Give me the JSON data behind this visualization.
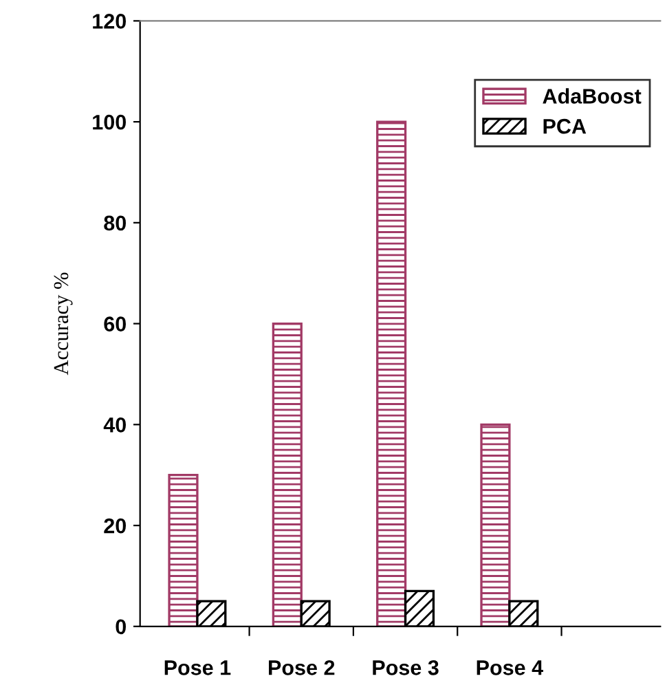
{
  "chart_data": {
    "type": "bar",
    "ylabel": "Accuracy %",
    "categories": [
      "Pose 1",
      "Pose 2",
      "Pose 3",
      "Pose 4",
      null
    ],
    "series": [
      {
        "name": "AdaBoost",
        "color": "#a23a66",
        "values": [
          30,
          60,
          100,
          40,
          null
        ]
      },
      {
        "name": "PCA",
        "color": "#000000",
        "values": [
          5,
          5,
          7,
          5,
          null
        ]
      }
    ],
    "ylim": [
      0,
      120
    ],
    "yticks": [
      0,
      20,
      40,
      60,
      80,
      100,
      120
    ],
    "grid": false,
    "legend": "top right"
  }
}
